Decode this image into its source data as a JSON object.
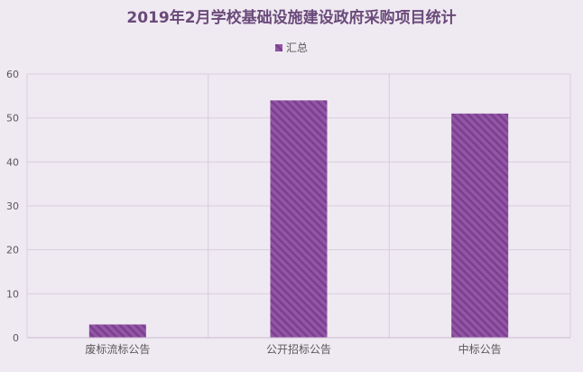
{
  "chart_data": {
    "type": "bar",
    "title": "2019年2月学校基础设施建设政府采购项目统计",
    "categories": [
      "废标流标公告",
      "公开招标公告",
      "中标公告"
    ],
    "series": [
      {
        "name": "汇总",
        "values": [
          3,
          54,
          51
        ]
      }
    ],
    "ylim": [
      0,
      60
    ],
    "yticks": [
      0,
      10,
      20,
      30,
      40,
      50,
      60
    ],
    "legend": "top-center",
    "grid": true,
    "colors": {
      "bar": "#9355a6",
      "bar_stripe": "#7a3f8f",
      "title": "#6a4a7a",
      "grid": "#d8cedd",
      "axis_text": "#595959"
    }
  }
}
